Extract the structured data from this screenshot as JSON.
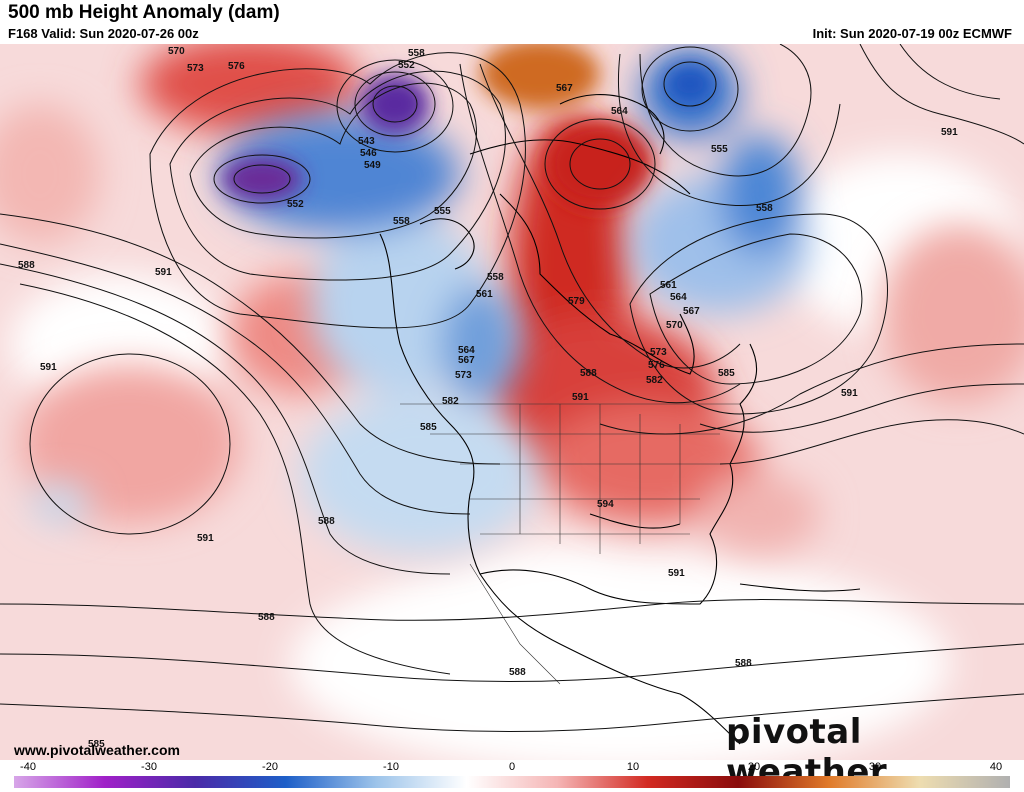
{
  "header": {
    "title": "500 mb Height Anomaly (dam)",
    "valid": "F168 Valid: Sun 2020-07-26 00z",
    "init": "Init: Sun 2020-07-19 00z ECMWF"
  },
  "footer": {
    "url": "www.pivotalweather.com",
    "brand": "pivotal weather"
  },
  "contour_labels": [
    "570",
    "573",
    "576",
    "558",
    "552",
    "567",
    "564",
    "555",
    "543",
    "546",
    "549",
    "552",
    "558",
    "555",
    "558",
    "561",
    "564",
    "567",
    "573",
    "582",
    "585",
    "588",
    "591",
    "579",
    "588",
    "591",
    "561",
    "564",
    "567",
    "570",
    "573",
    "576",
    "582",
    "585",
    "591",
    "591",
    "594",
    "591",
    "588",
    "591",
    "588",
    "591",
    "588",
    "588",
    "585",
    "558"
  ],
  "colorbar": {
    "tick_labels": [
      "-40",
      "-30",
      "-20",
      "-10",
      "0",
      "10",
      "20",
      "30",
      "40"
    ],
    "stops": [
      "#d7a6e8",
      "#a020c8",
      "#4a2aa8",
      "#1e5fc8",
      "#9dc4ea",
      "#ffffff",
      "#f5b5b5",
      "#d22a22",
      "#8a0c0c",
      "#e07a2a",
      "#eeddb0",
      "#b0b0b0"
    ]
  },
  "colors": {
    "deep_negative": "#6a2aa0",
    "negative": "#3f7fd0",
    "weak_negative": "#c7dcf2",
    "weak_positive": "#f5c9c9",
    "positive": "#d83a32",
    "strong_positive": "#c8641e"
  }
}
